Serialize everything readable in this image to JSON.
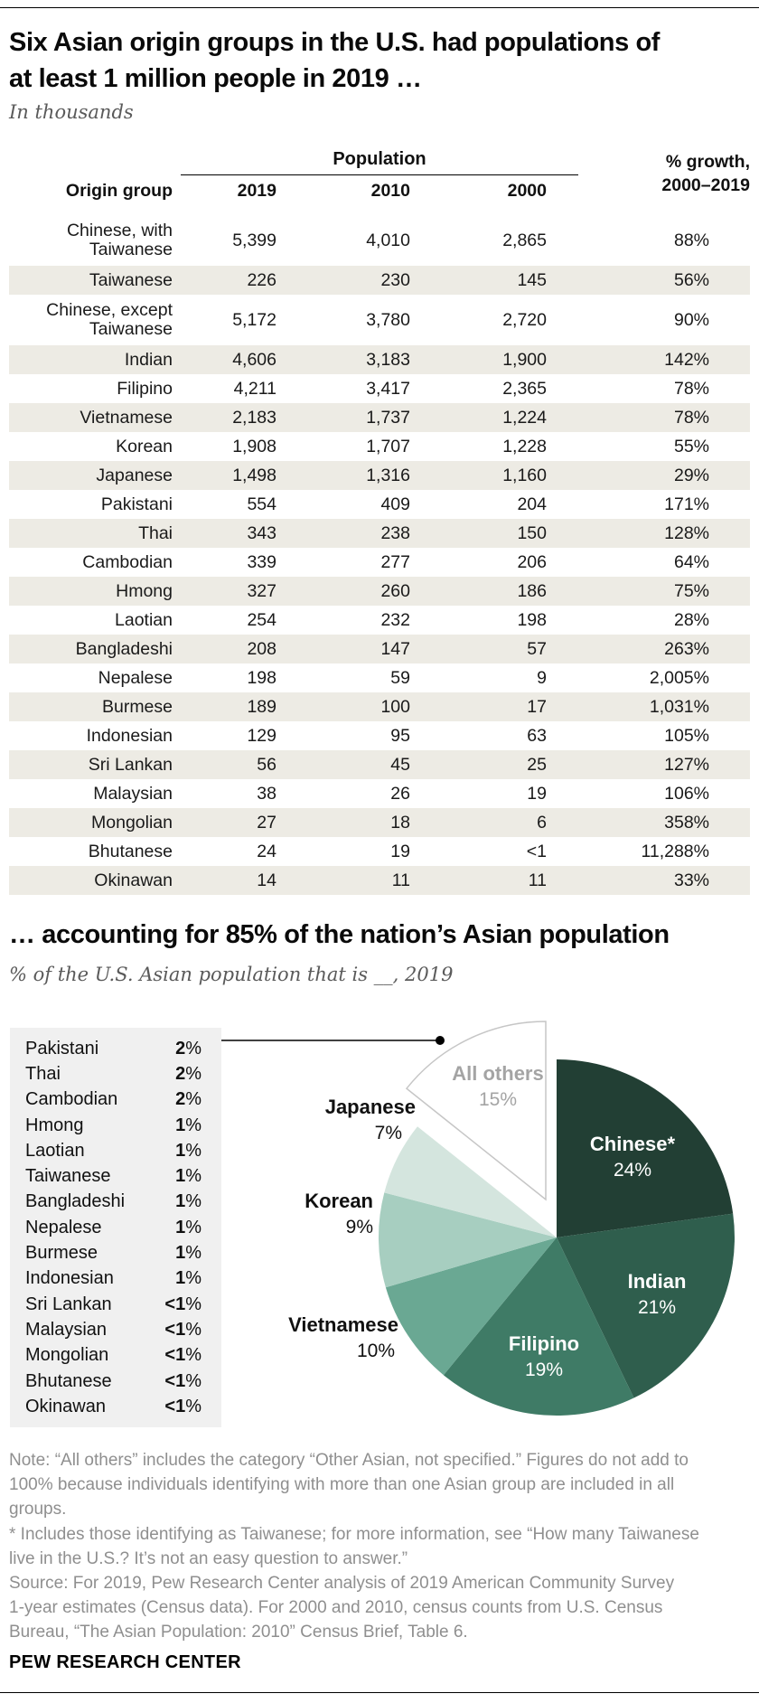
{
  "header": {
    "title_lines": [
      "Six Asian origin groups in the U.S. had populations of",
      "at least 1 million people in 2019 …"
    ],
    "subtitle": "In thousands"
  },
  "section2": {
    "title": "… accounting for 85% of the nation’s Asian population",
    "subtitle": "% of the U.S. Asian population that is __, 2019"
  },
  "table_header": {
    "origin": "Origin group",
    "population": "Population",
    "years": [
      "2019",
      "2010",
      "2000"
    ],
    "growth_line1": "% growth,",
    "growth_line2": "2000–2019"
  },
  "chart_data": [
    {
      "type": "table",
      "title": "Six Asian origin groups in the U.S. had populations of at least 1 million people in 2019 …",
      "units": "In thousands",
      "column_group": "Population",
      "columns": [
        "Origin group",
        "2019",
        "2010",
        "2000",
        "% growth, 2000–2019"
      ],
      "rows": [
        [
          "Chinese, with Taiwanese",
          "5,399",
          "4,010",
          "2,865",
          "88%"
        ],
        [
          "Taiwanese",
          "226",
          "230",
          "145",
          "56%"
        ],
        [
          "Chinese, except Taiwanese",
          "5,172",
          "3,780",
          "2,720",
          "90%"
        ],
        [
          "Indian",
          "4,606",
          "3,183",
          "1,900",
          "142%"
        ],
        [
          "Filipino",
          "4,211",
          "3,417",
          "2,365",
          "78%"
        ],
        [
          "Vietnamese",
          "2,183",
          "1,737",
          "1,224",
          "78%"
        ],
        [
          "Korean",
          "1,908",
          "1,707",
          "1,228",
          "55%"
        ],
        [
          "Japanese",
          "1,498",
          "1,316",
          "1,160",
          "29%"
        ],
        [
          "Pakistani",
          "554",
          "409",
          "204",
          "171%"
        ],
        [
          "Thai",
          "343",
          "238",
          "150",
          "128%"
        ],
        [
          "Cambodian",
          "339",
          "277",
          "206",
          "64%"
        ],
        [
          "Hmong",
          "327",
          "260",
          "186",
          "75%"
        ],
        [
          "Laotian",
          "254",
          "232",
          "198",
          "28%"
        ],
        [
          "Bangladeshi",
          "208",
          "147",
          "57",
          "263%"
        ],
        [
          "Nepalese",
          "198",
          "59",
          "9",
          "2,005%"
        ],
        [
          "Burmese",
          "189",
          "100",
          "17",
          "1,031%"
        ],
        [
          "Indonesian",
          "129",
          "95",
          "63",
          "105%"
        ],
        [
          "Sri Lankan",
          "56",
          "45",
          "25",
          "127%"
        ],
        [
          "Malaysian",
          "38",
          "26",
          "19",
          "106%"
        ],
        [
          "Mongolian",
          "27",
          "18",
          "6",
          "358%"
        ],
        [
          "Bhutanese",
          "24",
          "19",
          "<1",
          "11,288%"
        ],
        [
          "Okinawan",
          "14",
          "11",
          "11",
          "33%"
        ]
      ]
    },
    {
      "type": "pie",
      "title": "… accounting for 85% of the nation’s Asian population",
      "subtitle": "% of the U.S. Asian population that is __, 2019",
      "start_angle_deg": 0,
      "clockwise": true,
      "legend_position": "left",
      "slices": [
        {
          "label": "Chinese*",
          "value": 24,
          "display": "24%",
          "color": "#223f34"
        },
        {
          "label": "Indian",
          "value": 21,
          "display": "21%",
          "color": "#2f5e4d"
        },
        {
          "label": "Filipino",
          "value": 19,
          "display": "19%",
          "color": "#3f7b66"
        },
        {
          "label": "Vietnamese",
          "value": 10,
          "display": "10%",
          "color": "#6aa893"
        },
        {
          "label": "Korean",
          "value": 9,
          "display": "9%",
          "color": "#a7cec0"
        },
        {
          "label": "Japanese",
          "value": 7,
          "display": "7%",
          "color": "#d4e5de"
        },
        {
          "label": "All others",
          "value": 15,
          "display": "15%",
          "color": "#ffffff",
          "exploded": true,
          "outline": "#c6c6c6"
        }
      ]
    }
  ],
  "legend": {
    "items": [
      {
        "label": "Pakistani",
        "value": "2%"
      },
      {
        "label": "Thai",
        "value": "2%"
      },
      {
        "label": "Cambodian",
        "value": "2%"
      },
      {
        "label": "Hmong",
        "value": "1%"
      },
      {
        "label": "Laotian",
        "value": "1%"
      },
      {
        "label": "Taiwanese",
        "value": "1%"
      },
      {
        "label": "Bangladeshi",
        "value": "1%"
      },
      {
        "label": "Nepalese",
        "value": "1%"
      },
      {
        "label": "Burmese",
        "value": "1%"
      },
      {
        "label": "Indonesian",
        "value": "1%"
      },
      {
        "label": "Sri Lankan",
        "value": "<1%"
      },
      {
        "label": "Malaysian",
        "value": "<1%"
      },
      {
        "label": "Mongolian",
        "value": "<1%"
      },
      {
        "label": "Bhutanese",
        "value": "<1%"
      },
      {
        "label": "Okinawan",
        "value": "<1%"
      }
    ]
  },
  "footnote_lines": [
    "Note: “All others” includes the category “Other Asian, not specified.” Figures do not add to",
    "100% because individuals identifying with more than one Asian group are included in all",
    "groups.",
    "* Includes those identifying as Taiwanese; for more information, see “How many Taiwanese",
    "live in the U.S.? It’s not an easy question to answer.”",
    "Source: For 2019, Pew Research Center analysis of 2019 American Community Survey",
    "1-year estimates (Census data). For 2000 and 2010, census counts from U.S. Census",
    "Bureau, “The Asian Population: 2010” Census Brief, Table 6."
  ],
  "brand": "PEW RESEARCH CENTER"
}
